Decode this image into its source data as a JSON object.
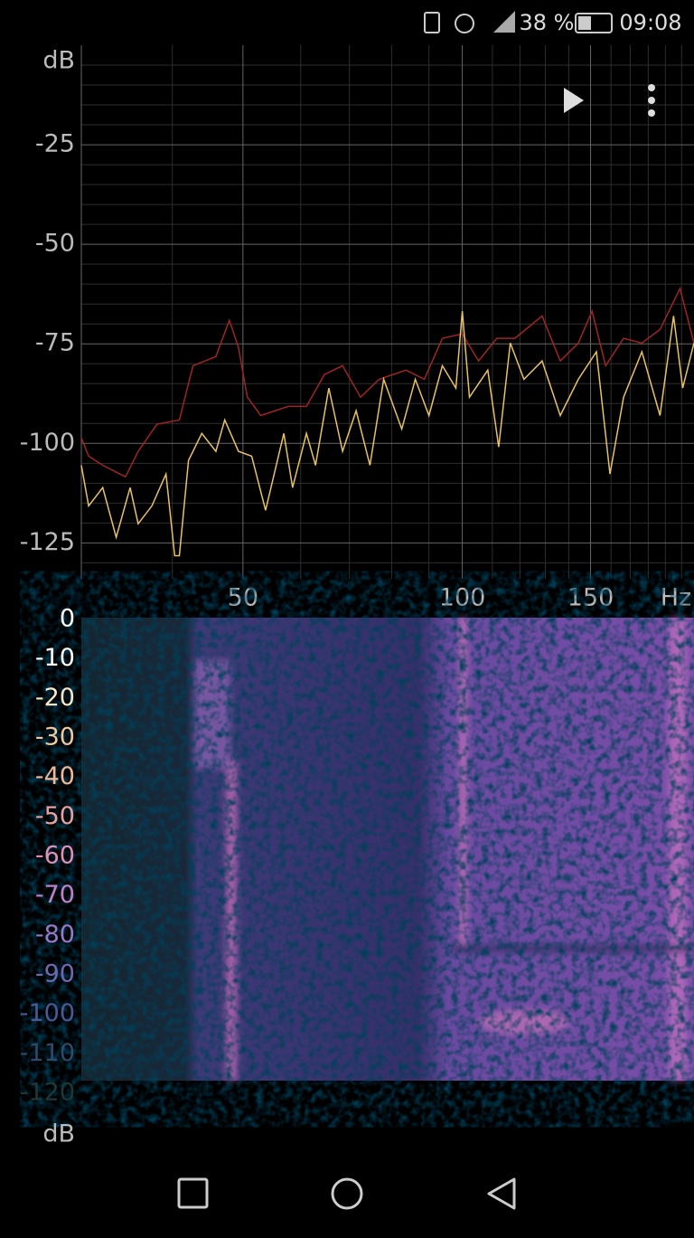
{
  "status_bar": {
    "battery": "38 %",
    "time": "09:08"
  },
  "chart_data": [
    {
      "type": "line",
      "xlabel": "Hz",
      "ylabel": "dB",
      "xscale": "log",
      "grid": true,
      "xlim": [
        30,
        208
      ],
      "xticks": [
        50,
        100,
        150
      ],
      "xminor": [
        40,
        60,
        70,
        80,
        90,
        110,
        120,
        130,
        140,
        160,
        170,
        180,
        190,
        200
      ],
      "ylim": [
        -134,
        0
      ],
      "yticks": [
        -25,
        -50,
        -75,
        -100,
        -125
      ],
      "yminor": [
        -5,
        -10,
        -15,
        -20,
        -30,
        -35,
        -40,
        -45,
        -55,
        -60,
        -65,
        -70,
        -80,
        -85,
        -90,
        -95,
        -105,
        -110,
        -115,
        -120,
        -130
      ],
      "series": [
        {
          "color": "#a02424",
          "x": [
            30,
            30.7,
            32.1,
            34.5,
            35.9,
            38.1,
            40.9,
            42.7,
            45.9,
            47.9,
            49.3,
            50.7,
            52.9,
            57.7,
            61.1,
            64.7,
            68.5,
            72.5,
            76.9,
            83.7,
            88.7,
            93.9,
            100,
            105.3,
            111.5,
            118.1,
            128.7,
            136.3,
            144.3,
            150.7,
            157.3,
            166.5,
            176.4,
            186.8,
            199,
            208
          ],
          "values": [
            -98.6,
            -103.2,
            -105.5,
            -108.4,
            -102,
            -95.2,
            -94.1,
            -80.5,
            -78.2,
            -69.1,
            -75.9,
            -88.4,
            -93,
            -90.7,
            -90.7,
            -82.7,
            -80.5,
            -88.4,
            -83.9,
            -81.6,
            -83.9,
            -73.6,
            -72.5,
            -79.3,
            -73.6,
            -73.6,
            -68,
            -79.3,
            -74.8,
            -66.8,
            -80.5,
            -73.6,
            -74.8,
            -71.4,
            -61.1,
            -74.8
          ]
        },
        {
          "color": "#e8c265",
          "x": [
            30,
            30.7,
            32.1,
            33.5,
            35.0,
            35.9,
            37.5,
            39.2,
            40.3,
            40.9,
            42.1,
            43.9,
            45.9,
            47.2,
            49.3,
            51.4,
            53.7,
            56.9,
            58.5,
            61.1,
            62.9,
            65.6,
            68.5,
            71.5,
            74.7,
            78.0,
            82.6,
            86.2,
            90.0,
            93.9,
            98.0,
            100,
            102.3,
            108.4,
            112.2,
            116.4,
            121.5,
            128.7,
            136.3,
            144.3,
            152.8,
            159.5,
            166.5,
            176.4,
            186.8,
            195.0,
            200.7,
            208
          ],
          "values": [
            -105.5,
            -115.7,
            -111.1,
            -123.6,
            -111.1,
            -120.2,
            -115.7,
            -107.7,
            -128.2,
            -128.2,
            -104.3,
            -97.5,
            -102,
            -94.1,
            -102,
            -103.2,
            -116.8,
            -97.5,
            -111.1,
            -97.5,
            -105.5,
            -86.1,
            -102,
            -91.8,
            -105.5,
            -83.9,
            -96.4,
            -83.9,
            -93,
            -80.5,
            -86.1,
            -66.8,
            -88.4,
            -81.6,
            -100.9,
            -74.8,
            -83.9,
            -79.3,
            -93,
            -83.9,
            -77,
            -107.7,
            -88.4,
            -77,
            -93,
            -68,
            -86.1,
            -74.8
          ]
        }
      ]
    },
    {
      "type": "spectrogram",
      "clabel": "dB",
      "clim": [
        -120,
        0
      ],
      "cticks": [
        0,
        -10,
        -20,
        -30,
        -40,
        -50,
        -60,
        -70,
        -80,
        -90,
        -100,
        -110,
        -120
      ],
      "ctick_colors": [
        "#ffffff",
        "#ffffff",
        "#f5e6c8",
        "#ecc9a0",
        "#f0b898",
        "#e8a0a0",
        "#e090b8",
        "#c080c8",
        "#9878c8",
        "#7068b0",
        "#4a5a98",
        "#2e4a6a",
        "#1e3838"
      ]
    }
  ]
}
